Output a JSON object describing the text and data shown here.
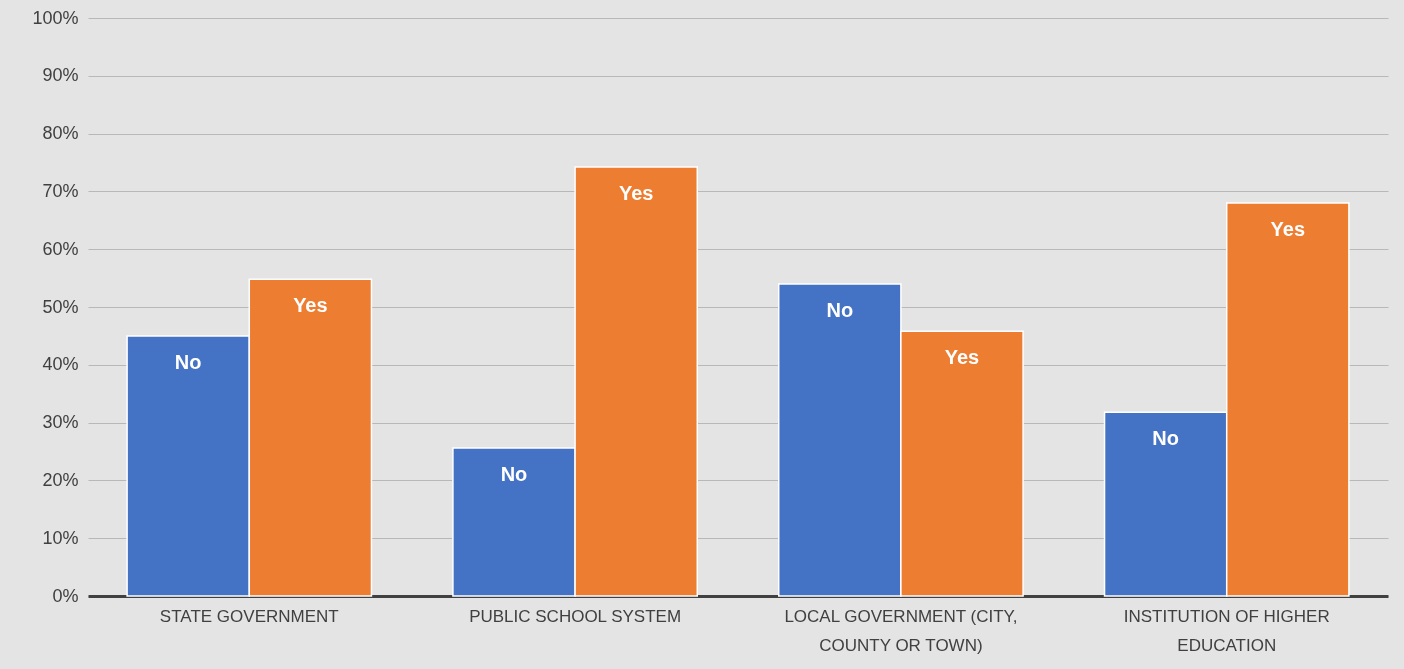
{
  "chart_data": {
    "type": "bar",
    "categories": [
      "STATE GOVERNMENT",
      "PUBLIC SCHOOL SYSTEM",
      "LOCAL GOVERNMENT (CITY, COUNTY OR TOWN)",
      "INSTITUTION OF HIGHER EDUCATION"
    ],
    "series": [
      {
        "name": "No",
        "color": "#4472c4",
        "values": [
          45.0,
          25.6,
          54.0,
          31.8
        ]
      },
      {
        "name": "Yes",
        "color": "#ed7d31",
        "values": [
          54.8,
          74.2,
          45.8,
          68.0
        ]
      }
    ],
    "ylim": [
      0,
      100
    ],
    "yticks": [
      {
        "value": 0,
        "label": "0%"
      },
      {
        "value": 10,
        "label": "10%"
      },
      {
        "value": 20,
        "label": "20%"
      },
      {
        "value": 30,
        "label": "30%"
      },
      {
        "value": 40,
        "label": "40%"
      },
      {
        "value": 50,
        "label": "50%"
      },
      {
        "value": 60,
        "label": "60%"
      },
      {
        "value": 70,
        "label": "70%"
      },
      {
        "value": 80,
        "label": "80%"
      },
      {
        "value": 90,
        "label": "90%"
      },
      {
        "value": 100,
        "label": "100%"
      }
    ],
    "grid": "y"
  }
}
